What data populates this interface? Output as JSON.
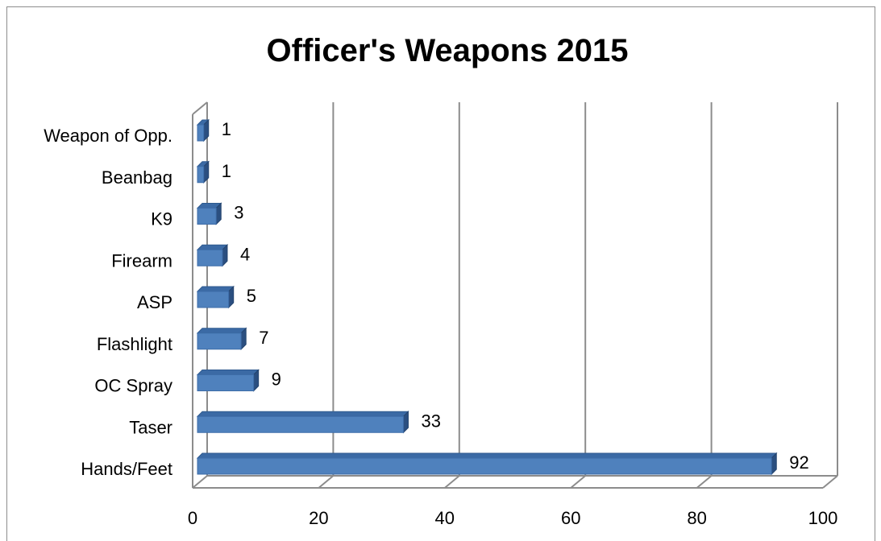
{
  "chart_data": {
    "type": "bar",
    "orientation": "horizontal",
    "style": "3d",
    "title": "Officer's Weapons 2015",
    "categories": [
      "Weapon of Opp.",
      "Beanbag",
      "K9",
      "Firearm",
      "ASP",
      "Flashlight",
      "OC Spray",
      "Taser",
      "Hands/Feet"
    ],
    "values": [
      1,
      1,
      3,
      4,
      5,
      7,
      9,
      33,
      92
    ],
    "xlim": [
      0,
      100
    ],
    "xticks": [
      "0",
      "20",
      "40",
      "60",
      "80",
      "100"
    ],
    "grid": true,
    "legend": "none",
    "bar_color": "#4f81bd"
  }
}
